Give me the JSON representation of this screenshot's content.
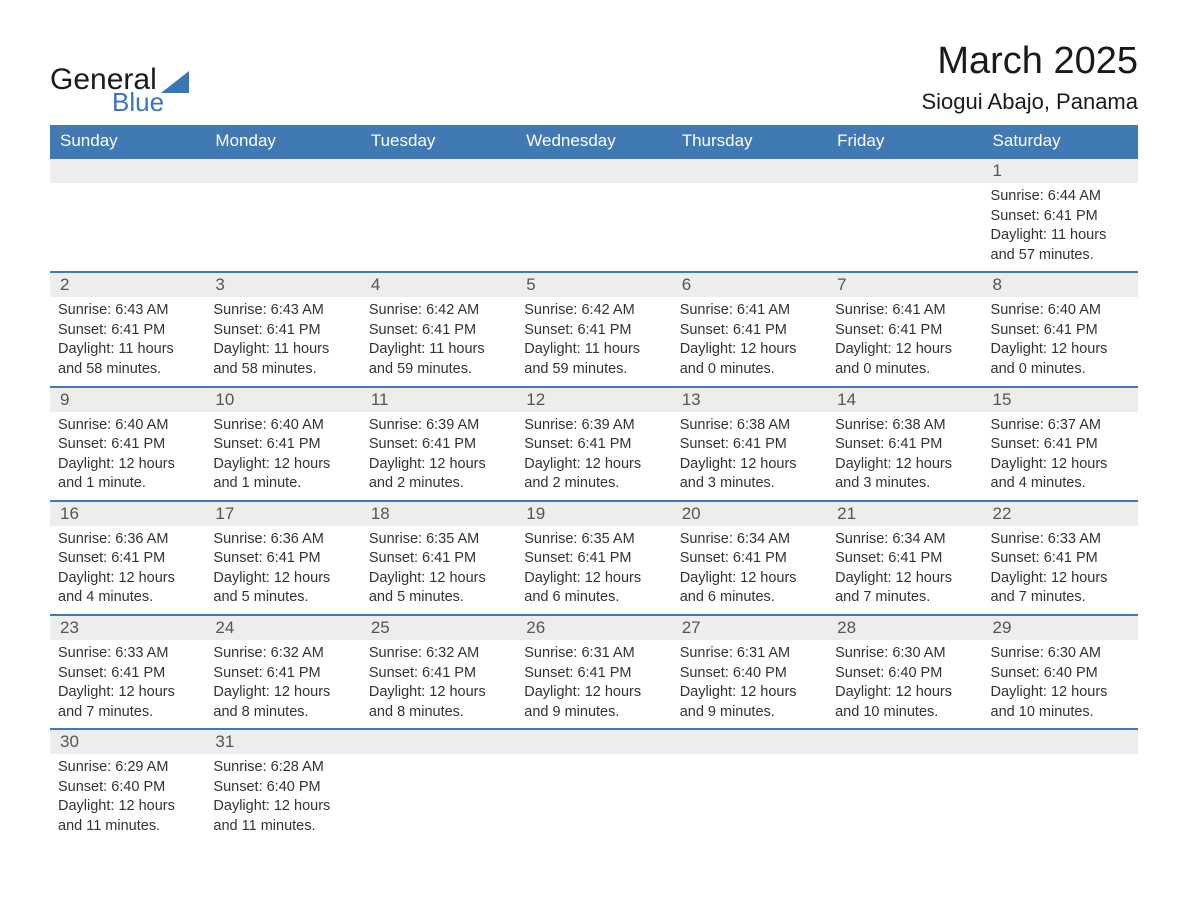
{
  "logo": {
    "word1": "General",
    "word2": "Blue"
  },
  "title": "March 2025",
  "location": "Siogui Abajo, Panama",
  "colors": {
    "header_bg": "#4079b3",
    "header_fg": "#ffffff",
    "row_border": "#4079b3",
    "daynum_bg": "#ededed",
    "text": "#333333",
    "logo_accent": "#3a76b4",
    "page_bg": "#ffffff"
  },
  "daynames": [
    "Sunday",
    "Monday",
    "Tuesday",
    "Wednesday",
    "Thursday",
    "Friday",
    "Saturday"
  ],
  "weeks": [
    [
      null,
      null,
      null,
      null,
      null,
      null,
      {
        "n": "1",
        "sunrise": "Sunrise: 6:44 AM",
        "sunset": "Sunset: 6:41 PM",
        "daylight": "Daylight: 11 hours and 57 minutes."
      }
    ],
    [
      {
        "n": "2",
        "sunrise": "Sunrise: 6:43 AM",
        "sunset": "Sunset: 6:41 PM",
        "daylight": "Daylight: 11 hours and 58 minutes."
      },
      {
        "n": "3",
        "sunrise": "Sunrise: 6:43 AM",
        "sunset": "Sunset: 6:41 PM",
        "daylight": "Daylight: 11 hours and 58 minutes."
      },
      {
        "n": "4",
        "sunrise": "Sunrise: 6:42 AM",
        "sunset": "Sunset: 6:41 PM",
        "daylight": "Daylight: 11 hours and 59 minutes."
      },
      {
        "n": "5",
        "sunrise": "Sunrise: 6:42 AM",
        "sunset": "Sunset: 6:41 PM",
        "daylight": "Daylight: 11 hours and 59 minutes."
      },
      {
        "n": "6",
        "sunrise": "Sunrise: 6:41 AM",
        "sunset": "Sunset: 6:41 PM",
        "daylight": "Daylight: 12 hours and 0 minutes."
      },
      {
        "n": "7",
        "sunrise": "Sunrise: 6:41 AM",
        "sunset": "Sunset: 6:41 PM",
        "daylight": "Daylight: 12 hours and 0 minutes."
      },
      {
        "n": "8",
        "sunrise": "Sunrise: 6:40 AM",
        "sunset": "Sunset: 6:41 PM",
        "daylight": "Daylight: 12 hours and 0 minutes."
      }
    ],
    [
      {
        "n": "9",
        "sunrise": "Sunrise: 6:40 AM",
        "sunset": "Sunset: 6:41 PM",
        "daylight": "Daylight: 12 hours and 1 minute."
      },
      {
        "n": "10",
        "sunrise": "Sunrise: 6:40 AM",
        "sunset": "Sunset: 6:41 PM",
        "daylight": "Daylight: 12 hours and 1 minute."
      },
      {
        "n": "11",
        "sunrise": "Sunrise: 6:39 AM",
        "sunset": "Sunset: 6:41 PM",
        "daylight": "Daylight: 12 hours and 2 minutes."
      },
      {
        "n": "12",
        "sunrise": "Sunrise: 6:39 AM",
        "sunset": "Sunset: 6:41 PM",
        "daylight": "Daylight: 12 hours and 2 minutes."
      },
      {
        "n": "13",
        "sunrise": "Sunrise: 6:38 AM",
        "sunset": "Sunset: 6:41 PM",
        "daylight": "Daylight: 12 hours and 3 minutes."
      },
      {
        "n": "14",
        "sunrise": "Sunrise: 6:38 AM",
        "sunset": "Sunset: 6:41 PM",
        "daylight": "Daylight: 12 hours and 3 minutes."
      },
      {
        "n": "15",
        "sunrise": "Sunrise: 6:37 AM",
        "sunset": "Sunset: 6:41 PM",
        "daylight": "Daylight: 12 hours and 4 minutes."
      }
    ],
    [
      {
        "n": "16",
        "sunrise": "Sunrise: 6:36 AM",
        "sunset": "Sunset: 6:41 PM",
        "daylight": "Daylight: 12 hours and 4 minutes."
      },
      {
        "n": "17",
        "sunrise": "Sunrise: 6:36 AM",
        "sunset": "Sunset: 6:41 PM",
        "daylight": "Daylight: 12 hours and 5 minutes."
      },
      {
        "n": "18",
        "sunrise": "Sunrise: 6:35 AM",
        "sunset": "Sunset: 6:41 PM",
        "daylight": "Daylight: 12 hours and 5 minutes."
      },
      {
        "n": "19",
        "sunrise": "Sunrise: 6:35 AM",
        "sunset": "Sunset: 6:41 PM",
        "daylight": "Daylight: 12 hours and 6 minutes."
      },
      {
        "n": "20",
        "sunrise": "Sunrise: 6:34 AM",
        "sunset": "Sunset: 6:41 PM",
        "daylight": "Daylight: 12 hours and 6 minutes."
      },
      {
        "n": "21",
        "sunrise": "Sunrise: 6:34 AM",
        "sunset": "Sunset: 6:41 PM",
        "daylight": "Daylight: 12 hours and 7 minutes."
      },
      {
        "n": "22",
        "sunrise": "Sunrise: 6:33 AM",
        "sunset": "Sunset: 6:41 PM",
        "daylight": "Daylight: 12 hours and 7 minutes."
      }
    ],
    [
      {
        "n": "23",
        "sunrise": "Sunrise: 6:33 AM",
        "sunset": "Sunset: 6:41 PM",
        "daylight": "Daylight: 12 hours and 7 minutes."
      },
      {
        "n": "24",
        "sunrise": "Sunrise: 6:32 AM",
        "sunset": "Sunset: 6:41 PM",
        "daylight": "Daylight: 12 hours and 8 minutes."
      },
      {
        "n": "25",
        "sunrise": "Sunrise: 6:32 AM",
        "sunset": "Sunset: 6:41 PM",
        "daylight": "Daylight: 12 hours and 8 minutes."
      },
      {
        "n": "26",
        "sunrise": "Sunrise: 6:31 AM",
        "sunset": "Sunset: 6:41 PM",
        "daylight": "Daylight: 12 hours and 9 minutes."
      },
      {
        "n": "27",
        "sunrise": "Sunrise: 6:31 AM",
        "sunset": "Sunset: 6:40 PM",
        "daylight": "Daylight: 12 hours and 9 minutes."
      },
      {
        "n": "28",
        "sunrise": "Sunrise: 6:30 AM",
        "sunset": "Sunset: 6:40 PM",
        "daylight": "Daylight: 12 hours and 10 minutes."
      },
      {
        "n": "29",
        "sunrise": "Sunrise: 6:30 AM",
        "sunset": "Sunset: 6:40 PM",
        "daylight": "Daylight: 12 hours and 10 minutes."
      }
    ],
    [
      {
        "n": "30",
        "sunrise": "Sunrise: 6:29 AM",
        "sunset": "Sunset: 6:40 PM",
        "daylight": "Daylight: 12 hours and 11 minutes."
      },
      {
        "n": "31",
        "sunrise": "Sunrise: 6:28 AM",
        "sunset": "Sunset: 6:40 PM",
        "daylight": "Daylight: 12 hours and 11 minutes."
      },
      null,
      null,
      null,
      null,
      null
    ]
  ]
}
